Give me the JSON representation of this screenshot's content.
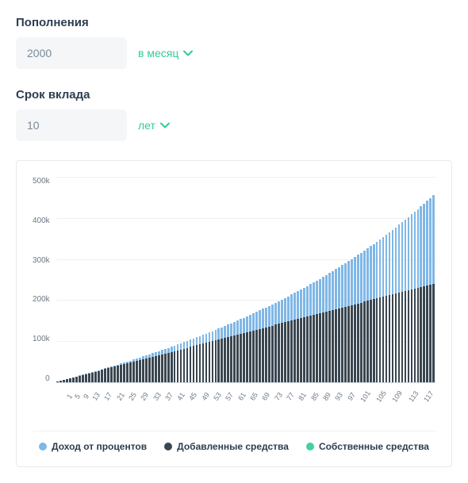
{
  "form": {
    "deposits": {
      "label": "Пополнения",
      "value": "2000",
      "unit_label": "в месяц"
    },
    "term": {
      "label": "Срок вклада",
      "value": "10",
      "unit_label": "лет"
    }
  },
  "colors": {
    "accent": "#2ecc9b",
    "input_bg": "#f4f6f8",
    "input_text": "#7a8a99",
    "card_border": "#e6eaee",
    "grid": "#eef1f4",
    "axis_text": "#6b7785",
    "text": "#2c3e50"
  },
  "chart": {
    "type": "stacked-bar",
    "background_color": "#ffffff",
    "ylim": [
      0,
      500000
    ],
    "ytick_step": 100000,
    "ytick_labels": [
      "500k",
      "400k",
      "300k",
      "200k",
      "100k",
      "0"
    ],
    "grid_color": "#eef1f4",
    "axis_text_color": "#6b7785",
    "bar_width": 0.7,
    "n_bars": 120,
    "own_funds_value": 0,
    "monthly_addition": 2000,
    "x_tick_step": 4,
    "x_tick_start": 1,
    "label_fontsize": 10,
    "series": [
      {
        "key": "interest",
        "label": "Доход от процентов",
        "color": "#7fb7e6"
      },
      {
        "key": "added",
        "label": "Добавленные средства",
        "color": "#3a4650"
      },
      {
        "key": "own",
        "label": "Собственные средства",
        "color": "#43d19e"
      }
    ],
    "interest_values": [
      0,
      17,
      50,
      100,
      167,
      251,
      352,
      471,
      607,
      761,
      933,
      1123,
      1331,
      1558,
      1804,
      2069,
      2353,
      2657,
      2981,
      3325,
      3689,
      4074,
      4480,
      4907,
      5356,
      5826,
      6319,
      6834,
      7371,
      7932,
      8516,
      9123,
      9755,
      10411,
      11091,
      11797,
      12528,
      13285,
      14068,
      14877,
      15714,
      16577,
      17469,
      18388,
      19336,
      20313,
      21319,
      22355,
      23421,
      24518,
      25646,
      26805,
      27997,
      29221,
      30478,
      31769,
      33094,
      34454,
      35849,
      37279,
      38746,
      40250,
      41791,
      43370,
      44988,
      46645,
      48342,
      50079,
      51858,
      53678,
      55541,
      57447,
      59396,
      61390,
      63430,
      65515,
      67647,
      69826,
      72053,
      74329,
      76655,
      79031,
      81459,
      83938,
      86471,
      89057,
      91697,
      94393,
      97145,
      99954,
      102821,
      105747,
      108732,
      111778,
      114886,
      118057,
      121291,
      124590,
      127954,
      131385,
      134884,
      138452,
      142089,
      145797,
      149578,
      153431,
      157359,
      161362,
      165441,
      169599,
      173835,
      178151,
      182548,
      187028,
      191592,
      196241,
      200977,
      205800,
      210713,
      215716
    ]
  }
}
